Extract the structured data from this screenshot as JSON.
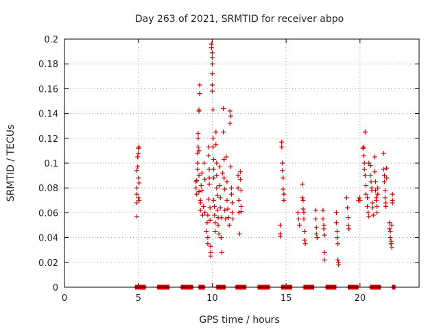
{
  "chart_data": {
    "type": "scatter",
    "title": "Day 263 of 2021, SRMTID for receiver abpo",
    "xlabel": "GPS time / hours",
    "ylabel": "SRMTID / TECUs",
    "xlim": [
      0,
      24
    ],
    "ylim": [
      0,
      0.2
    ],
    "xticks": [
      0,
      5,
      10,
      15,
      20
    ],
    "yticks": [
      0,
      0.02,
      0.04,
      0.06,
      0.08,
      0.1,
      0.12,
      0.14,
      0.16,
      0.18,
      0.2
    ],
    "xtick_labels": [
      "0",
      "5",
      "10",
      "15",
      "20"
    ],
    "ytick_labels": [
      "0",
      "0.02",
      "0.04",
      "0.06",
      "0.08",
      "0.1",
      "0.12",
      "0.14",
      "0.16",
      "0.18",
      "0.2"
    ],
    "grid": true,
    "marker": "+",
    "color": "#cc0000",
    "series": [
      {
        "name": "SRMTID",
        "points": [
          [
            4.9,
            0.057
          ],
          [
            4.9,
            0.068
          ],
          [
            4.9,
            0.075
          ],
          [
            4.9,
            0.08
          ],
          [
            4.9,
            0.094
          ],
          [
            4.95,
            0.097
          ],
          [
            4.95,
            0.105
          ],
          [
            5.0,
            0.112
          ],
          [
            5.0,
            0.108
          ],
          [
            5.0,
            0.088
          ],
          [
            5.0,
            0.072
          ],
          [
            5.05,
            0.084
          ],
          [
            5.05,
            0.113
          ],
          [
            5.05,
            0.07
          ],
          [
            8.9,
            0.08
          ],
          [
            8.9,
            0.085
          ],
          [
            8.95,
            0.075
          ],
          [
            8.95,
            0.086
          ],
          [
            9.0,
            0.095
          ],
          [
            9.0,
            0.1
          ],
          [
            9.0,
            0.108
          ],
          [
            9.05,
            0.113
          ],
          [
            9.05,
            0.12
          ],
          [
            9.05,
            0.124
          ],
          [
            9.1,
            0.11
          ],
          [
            9.1,
            0.09
          ],
          [
            9.1,
            0.077
          ],
          [
            9.1,
            0.142
          ],
          [
            9.1,
            0.143
          ],
          [
            9.15,
            0.156
          ],
          [
            9.15,
            0.163
          ],
          [
            9.2,
            0.068
          ],
          [
            9.2,
            0.062
          ],
          [
            9.2,
            0.07
          ],
          [
            9.25,
            0.082
          ],
          [
            9.3,
            0.092
          ],
          [
            9.3,
            0.078
          ],
          [
            9.35,
            0.058
          ],
          [
            9.4,
            0.065
          ],
          [
            9.45,
            0.1
          ],
          [
            9.5,
            0.087
          ],
          [
            9.5,
            0.06
          ],
          [
            9.6,
            0.045
          ],
          [
            9.65,
            0.052
          ],
          [
            9.7,
            0.058
          ],
          [
            9.7,
            0.04
          ],
          [
            9.7,
            0.035
          ],
          [
            9.75,
            0.113
          ],
          [
            9.75,
            0.106
          ],
          [
            9.75,
            0.071
          ],
          [
            9.8,
            0.088
          ],
          [
            9.8,
            0.095
          ],
          [
            9.8,
            0.083
          ],
          [
            9.85,
            0.064
          ],
          [
            9.85,
            0.054
          ],
          [
            9.9,
            0.033
          ],
          [
            9.9,
            0.028
          ],
          [
            9.9,
            0.025
          ],
          [
            9.95,
            0.196
          ],
          [
            9.95,
            0.193
          ],
          [
            10.0,
            0.189
          ],
          [
            10.0,
            0.185
          ],
          [
            10.0,
            0.18
          ],
          [
            10.0,
            0.172
          ],
          [
            10.0,
            0.163
          ],
          [
            10.0,
            0.158
          ],
          [
            10.05,
            0.143
          ],
          [
            10.05,
            0.12
          ],
          [
            10.05,
            0.113
          ],
          [
            10.1,
            0.103
          ],
          [
            10.1,
            0.095
          ],
          [
            10.1,
            0.088
          ],
          [
            10.1,
            0.07
          ],
          [
            10.15,
            0.065
          ],
          [
            10.15,
            0.058
          ],
          [
            10.2,
            0.052
          ],
          [
            10.2,
            0.045
          ],
          [
            10.25,
            0.125
          ],
          [
            10.25,
            0.115
          ],
          [
            10.3,
            0.1
          ],
          [
            10.3,
            0.09
          ],
          [
            10.3,
            0.08
          ],
          [
            10.35,
            0.074
          ],
          [
            10.35,
            0.062
          ],
          [
            10.4,
            0.056
          ],
          [
            10.4,
            0.05
          ],
          [
            10.45,
            0.043
          ],
          [
            10.5,
            0.097
          ],
          [
            10.5,
            0.082
          ],
          [
            10.55,
            0.072
          ],
          [
            10.55,
            0.064
          ],
          [
            10.6,
            0.056
          ],
          [
            10.6,
            0.04
          ],
          [
            10.65,
            0.028
          ],
          [
            10.7,
            0.092
          ],
          [
            10.75,
            0.125
          ],
          [
            10.75,
            0.144
          ],
          [
            10.8,
            0.103
          ],
          [
            10.8,
            0.088
          ],
          [
            10.85,
            0.079
          ],
          [
            10.85,
            0.062
          ],
          [
            10.9,
            0.055
          ],
          [
            10.95,
            0.105
          ],
          [
            11.0,
            0.085
          ],
          [
            11.0,
            0.07
          ],
          [
            11.05,
            0.063
          ],
          [
            11.1,
            0.056
          ],
          [
            11.15,
            0.05
          ],
          [
            11.2,
            0.132
          ],
          [
            11.2,
            0.142
          ],
          [
            11.25,
            0.138
          ],
          [
            11.25,
            0.097
          ],
          [
            11.3,
            0.08
          ],
          [
            11.3,
            0.075
          ],
          [
            11.35,
            0.068
          ],
          [
            11.35,
            0.06
          ],
          [
            11.4,
            0.055
          ],
          [
            11.75,
            0.09
          ],
          [
            11.75,
            0.08
          ],
          [
            11.8,
            0.07
          ],
          [
            11.8,
            0.06
          ],
          [
            11.85,
            0.043
          ],
          [
            11.9,
            0.093
          ],
          [
            11.9,
            0.087
          ],
          [
            11.95,
            0.078
          ],
          [
            11.95,
            0.065
          ],
          [
            11.95,
            0.061
          ],
          [
            14.6,
            0.05
          ],
          [
            14.6,
            0.043
          ],
          [
            14.6,
            0.041
          ],
          [
            14.7,
            0.117
          ],
          [
            14.7,
            0.113
          ],
          [
            14.75,
            0.1
          ],
          [
            14.75,
            0.094
          ],
          [
            14.8,
            0.088
          ],
          [
            14.8,
            0.079
          ],
          [
            14.85,
            0.075
          ],
          [
            14.85,
            0.07
          ],
          [
            16.1,
            0.083
          ],
          [
            16.1,
            0.072
          ],
          [
            16.15,
            0.07
          ],
          [
            16.15,
            0.063
          ],
          [
            16.2,
            0.06
          ],
          [
            16.2,
            0.055
          ],
          [
            16.25,
            0.045
          ],
          [
            16.25,
            0.038
          ],
          [
            16.3,
            0.035
          ],
          [
            15.8,
            0.06
          ],
          [
            15.85,
            0.055
          ],
          [
            15.9,
            0.05
          ],
          [
            17.0,
            0.062
          ],
          [
            17.0,
            0.055
          ],
          [
            17.05,
            0.048
          ],
          [
            17.05,
            0.043
          ],
          [
            17.1,
            0.04
          ],
          [
            17.5,
            0.062
          ],
          [
            17.5,
            0.055
          ],
          [
            17.55,
            0.05
          ],
          [
            17.55,
            0.047
          ],
          [
            17.6,
            0.042
          ],
          [
            17.6,
            0.028
          ],
          [
            17.6,
            0.022
          ],
          [
            18.4,
            0.06
          ],
          [
            18.4,
            0.052
          ],
          [
            18.45,
            0.045
          ],
          [
            18.45,
            0.04
          ],
          [
            18.5,
            0.035
          ],
          [
            18.5,
            0.022
          ],
          [
            18.55,
            0.02
          ],
          [
            18.55,
            0.018
          ],
          [
            19.1,
            0.072
          ],
          [
            19.15,
            0.064
          ],
          [
            19.2,
            0.056
          ],
          [
            19.2,
            0.05
          ],
          [
            19.25,
            0.047
          ],
          [
            19.9,
            0.07
          ],
          [
            19.95,
            0.072
          ],
          [
            20.0,
            0.07
          ],
          [
            20.2,
            0.112
          ],
          [
            20.25,
            0.113
          ],
          [
            20.25,
            0.106
          ],
          [
            20.3,
            0.095
          ],
          [
            20.3,
            0.1
          ],
          [
            20.35,
            0.125
          ],
          [
            20.35,
            0.09
          ],
          [
            20.4,
            0.082
          ],
          [
            20.4,
            0.075
          ],
          [
            20.5,
            0.072
          ],
          [
            20.5,
            0.065
          ],
          [
            20.55,
            0.06
          ],
          [
            20.6,
            0.057
          ],
          [
            20.6,
            0.1
          ],
          [
            20.7,
            0.098
          ],
          [
            20.7,
            0.09
          ],
          [
            20.75,
            0.085
          ],
          [
            20.8,
            0.08
          ],
          [
            20.8,
            0.078
          ],
          [
            20.85,
            0.068
          ],
          [
            20.85,
            0.064
          ],
          [
            20.9,
            0.058
          ],
          [
            21.0,
            0.105
          ],
          [
            21.0,
            0.093
          ],
          [
            21.05,
            0.085
          ],
          [
            21.05,
            0.078
          ],
          [
            21.1,
            0.072
          ],
          [
            21.1,
            0.07
          ],
          [
            21.15,
            0.065
          ],
          [
            21.15,
            0.06
          ],
          [
            21.2,
            0.075
          ],
          [
            21.2,
            0.08
          ],
          [
            21.6,
            0.108
          ],
          [
            21.6,
            0.095
          ],
          [
            21.65,
            0.09
          ],
          [
            21.65,
            0.085
          ],
          [
            21.7,
            0.078
          ],
          [
            21.7,
            0.072
          ],
          [
            21.75,
            0.068
          ],
          [
            21.75,
            0.065
          ],
          [
            21.8,
            0.088
          ],
          [
            21.8,
            0.096
          ],
          [
            22.0,
            0.052
          ],
          [
            22.0,
            0.047
          ],
          [
            22.05,
            0.045
          ],
          [
            22.05,
            0.04
          ],
          [
            22.1,
            0.037
          ],
          [
            22.1,
            0.035
          ],
          [
            22.15,
            0.032
          ],
          [
            22.15,
            0.05
          ],
          [
            22.2,
            0.07
          ],
          [
            22.2,
            0.075
          ],
          [
            22.2,
            0.068
          ]
        ],
        "zero_run_x": [
          4.8,
          5.5,
          6.3,
          7.1,
          7.9,
          8.7,
          9.1,
          9.5,
          10.3,
          10.9,
          11.6,
          12.3,
          13.1,
          13.9,
          14.7,
          15.4,
          16.2,
          16.9,
          17.7,
          18.4,
          19.2,
          19.9,
          20.7,
          21.4,
          22.2,
          22.4
        ]
      }
    ]
  }
}
